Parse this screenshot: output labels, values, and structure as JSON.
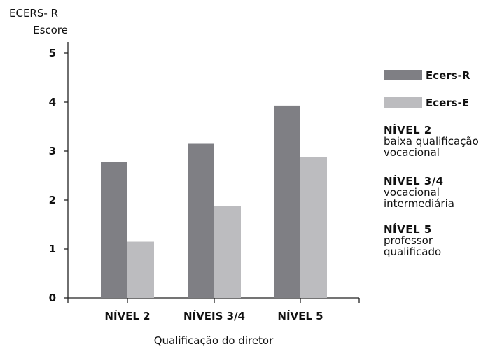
{
  "chart_data": {
    "type": "bar",
    "ylabel": [
      "ECERS- R",
      "Escore"
    ],
    "xlabel": "Qualificação do diretor",
    "categories": [
      "NÍVEL 2",
      "NÍVEIS 3/4",
      "NÍVEL 5"
    ],
    "series": [
      {
        "name": "Ecers-R",
        "color": "#7f7f84",
        "values": [
          2.78,
          3.15,
          3.93
        ]
      },
      {
        "name": "Ecers-E",
        "color": "#bcbcbf",
        "values": [
          1.15,
          1.88,
          2.88
        ]
      }
    ],
    "ylim": [
      0,
      5
    ],
    "yticks": [
      "0",
      "1",
      "2",
      "3",
      "4",
      "5"
    ],
    "grid": false,
    "legend_position": "right"
  },
  "notes": [
    {
      "title": "NÍVEL 2",
      "lines": [
        "baixa qualificação",
        "vocacional"
      ]
    },
    {
      "title": "NÍVEL 3/4",
      "lines": [
        "vocacional",
        "intermediária"
      ]
    },
    {
      "title": "NÍVEL 5",
      "lines": [
        "professor",
        "qualificado"
      ]
    }
  ]
}
